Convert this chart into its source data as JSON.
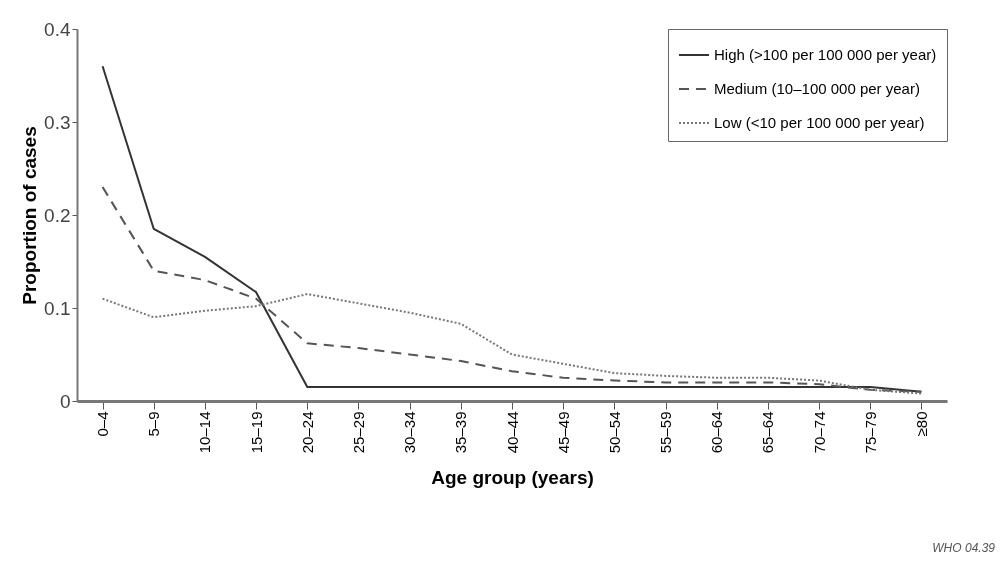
{
  "chart_data": {
    "type": "line",
    "xlabel": "Age group (years)",
    "ylabel": "Proportion of cases",
    "categories": [
      "0–4",
      "5–9",
      "10–14",
      "15–19",
      "20–24",
      "25–29",
      "30–34",
      "35–39",
      "40–44",
      "45–49",
      "50–54",
      "55–59",
      "60–64",
      "65–64",
      "70–74",
      "75–79",
      "≥80"
    ],
    "series": [
      {
        "name": "High (>100 per 100 000 per year)",
        "color": "#333333",
        "line_style": "solid",
        "values": [
          0.36,
          0.185,
          0.155,
          0.117,
          0.015,
          0.015,
          0.015,
          0.015,
          0.015,
          0.015,
          0.015,
          0.015,
          0.015,
          0.015,
          0.015,
          0.015,
          0.01
        ]
      },
      {
        "name": "Medium (10–100 000 per year)",
        "color": "#555555",
        "line_style": "dashed",
        "values": [
          0.23,
          0.14,
          0.13,
          0.11,
          0.062,
          0.057,
          0.05,
          0.043,
          0.032,
          0.025,
          0.022,
          0.02,
          0.02,
          0.02,
          0.018,
          0.012,
          0.01
        ]
      },
      {
        "name": "Low (<10 per 100 000 per year)",
        "color": "#777777",
        "line_style": "dotted",
        "values": [
          0.11,
          0.09,
          0.097,
          0.102,
          0.115,
          0.105,
          0.095,
          0.083,
          0.05,
          0.04,
          0.03,
          0.027,
          0.025,
          0.025,
          0.022,
          0.012,
          0.008
        ]
      }
    ],
    "ylim": [
      0,
      0.4
    ],
    "yticks": [
      0,
      0.1,
      0.2,
      0.3,
      0.4
    ],
    "grid": false,
    "legend": "top right",
    "marker": "none",
    "annotations": [
      "WHO 04.39"
    ]
  }
}
